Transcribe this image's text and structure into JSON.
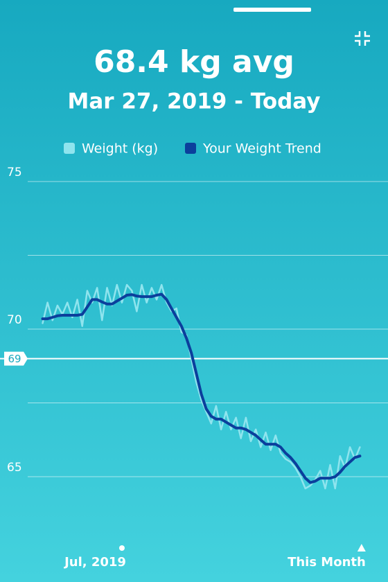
{
  "chart_data": {
    "type": "line",
    "title": "68.4 kg avg",
    "subtitle": "Mar 27, 2019 - Today",
    "x": [
      0,
      6,
      12,
      18,
      24,
      30,
      36,
      42,
      48,
      54,
      60,
      66,
      72,
      78,
      84,
      90,
      96,
      102,
      108,
      114,
      120,
      126,
      132,
      138,
      144,
      150,
      156,
      162,
      168,
      174,
      180,
      186,
      192,
      198,
      204,
      210,
      216,
      222,
      228,
      234,
      240,
      246,
      252,
      258,
      264,
      270,
      276,
      282,
      288,
      294,
      300,
      306,
      312,
      318,
      324,
      330,
      336,
      342,
      348,
      354,
      360,
      366,
      372,
      378,
      384
    ],
    "series": [
      {
        "name": "Weight (kg)",
        "color": "#8fe4ee",
        "values": [
          70.2,
          70.9,
          70.3,
          70.8,
          70.5,
          70.9,
          70.4,
          71.0,
          70.1,
          71.3,
          70.9,
          71.4,
          70.3,
          71.4,
          70.8,
          71.5,
          70.9,
          71.5,
          71.3,
          70.6,
          71.5,
          70.9,
          71.4,
          71.0,
          71.5,
          70.9,
          70.6,
          70.7,
          69.9,
          69.8,
          69.0,
          68.2,
          67.6,
          67.2,
          66.8,
          67.4,
          66.6,
          67.2,
          66.6,
          67.0,
          66.3,
          67.0,
          66.2,
          66.6,
          66.0,
          66.5,
          65.9,
          66.4,
          65.8,
          65.6,
          65.5,
          65.3,
          65.0,
          64.6,
          64.7,
          64.9,
          65.2,
          64.6,
          65.4,
          64.6,
          65.7,
          65.3,
          66.0,
          65.6,
          66.0
        ]
      },
      {
        "name": "Your Weight Trend",
        "color": "#0b3f9c",
        "values": [
          70.35,
          70.35,
          70.4,
          70.45,
          70.47,
          70.47,
          70.47,
          70.47,
          70.5,
          70.75,
          71.0,
          71.0,
          70.92,
          70.85,
          70.85,
          70.95,
          71.05,
          71.15,
          71.17,
          71.12,
          71.1,
          71.1,
          71.1,
          71.15,
          71.18,
          71.0,
          70.7,
          70.4,
          70.1,
          69.7,
          69.2,
          68.5,
          67.8,
          67.3,
          67.05,
          66.95,
          66.95,
          66.85,
          66.75,
          66.65,
          66.65,
          66.6,
          66.5,
          66.4,
          66.25,
          66.1,
          66.1,
          66.1,
          66.0,
          65.8,
          65.65,
          65.45,
          65.2,
          64.95,
          64.8,
          64.85,
          64.95,
          64.95,
          64.95,
          65.0,
          65.15,
          65.35,
          65.5,
          65.65,
          65.7
        ]
      }
    ],
    "xlim": [
      -18,
      418
    ],
    "xticks": [
      {
        "value": 96,
        "label": "Jul, 2019"
      },
      {
        "value": 386,
        "label": "This Month"
      }
    ],
    "ylim": [
      63,
      75.5
    ],
    "yticks": [
      65,
      70,
      75
    ],
    "ygrid": [
      65,
      67.5,
      70,
      72.5,
      75
    ],
    "goal": 69
  }
}
